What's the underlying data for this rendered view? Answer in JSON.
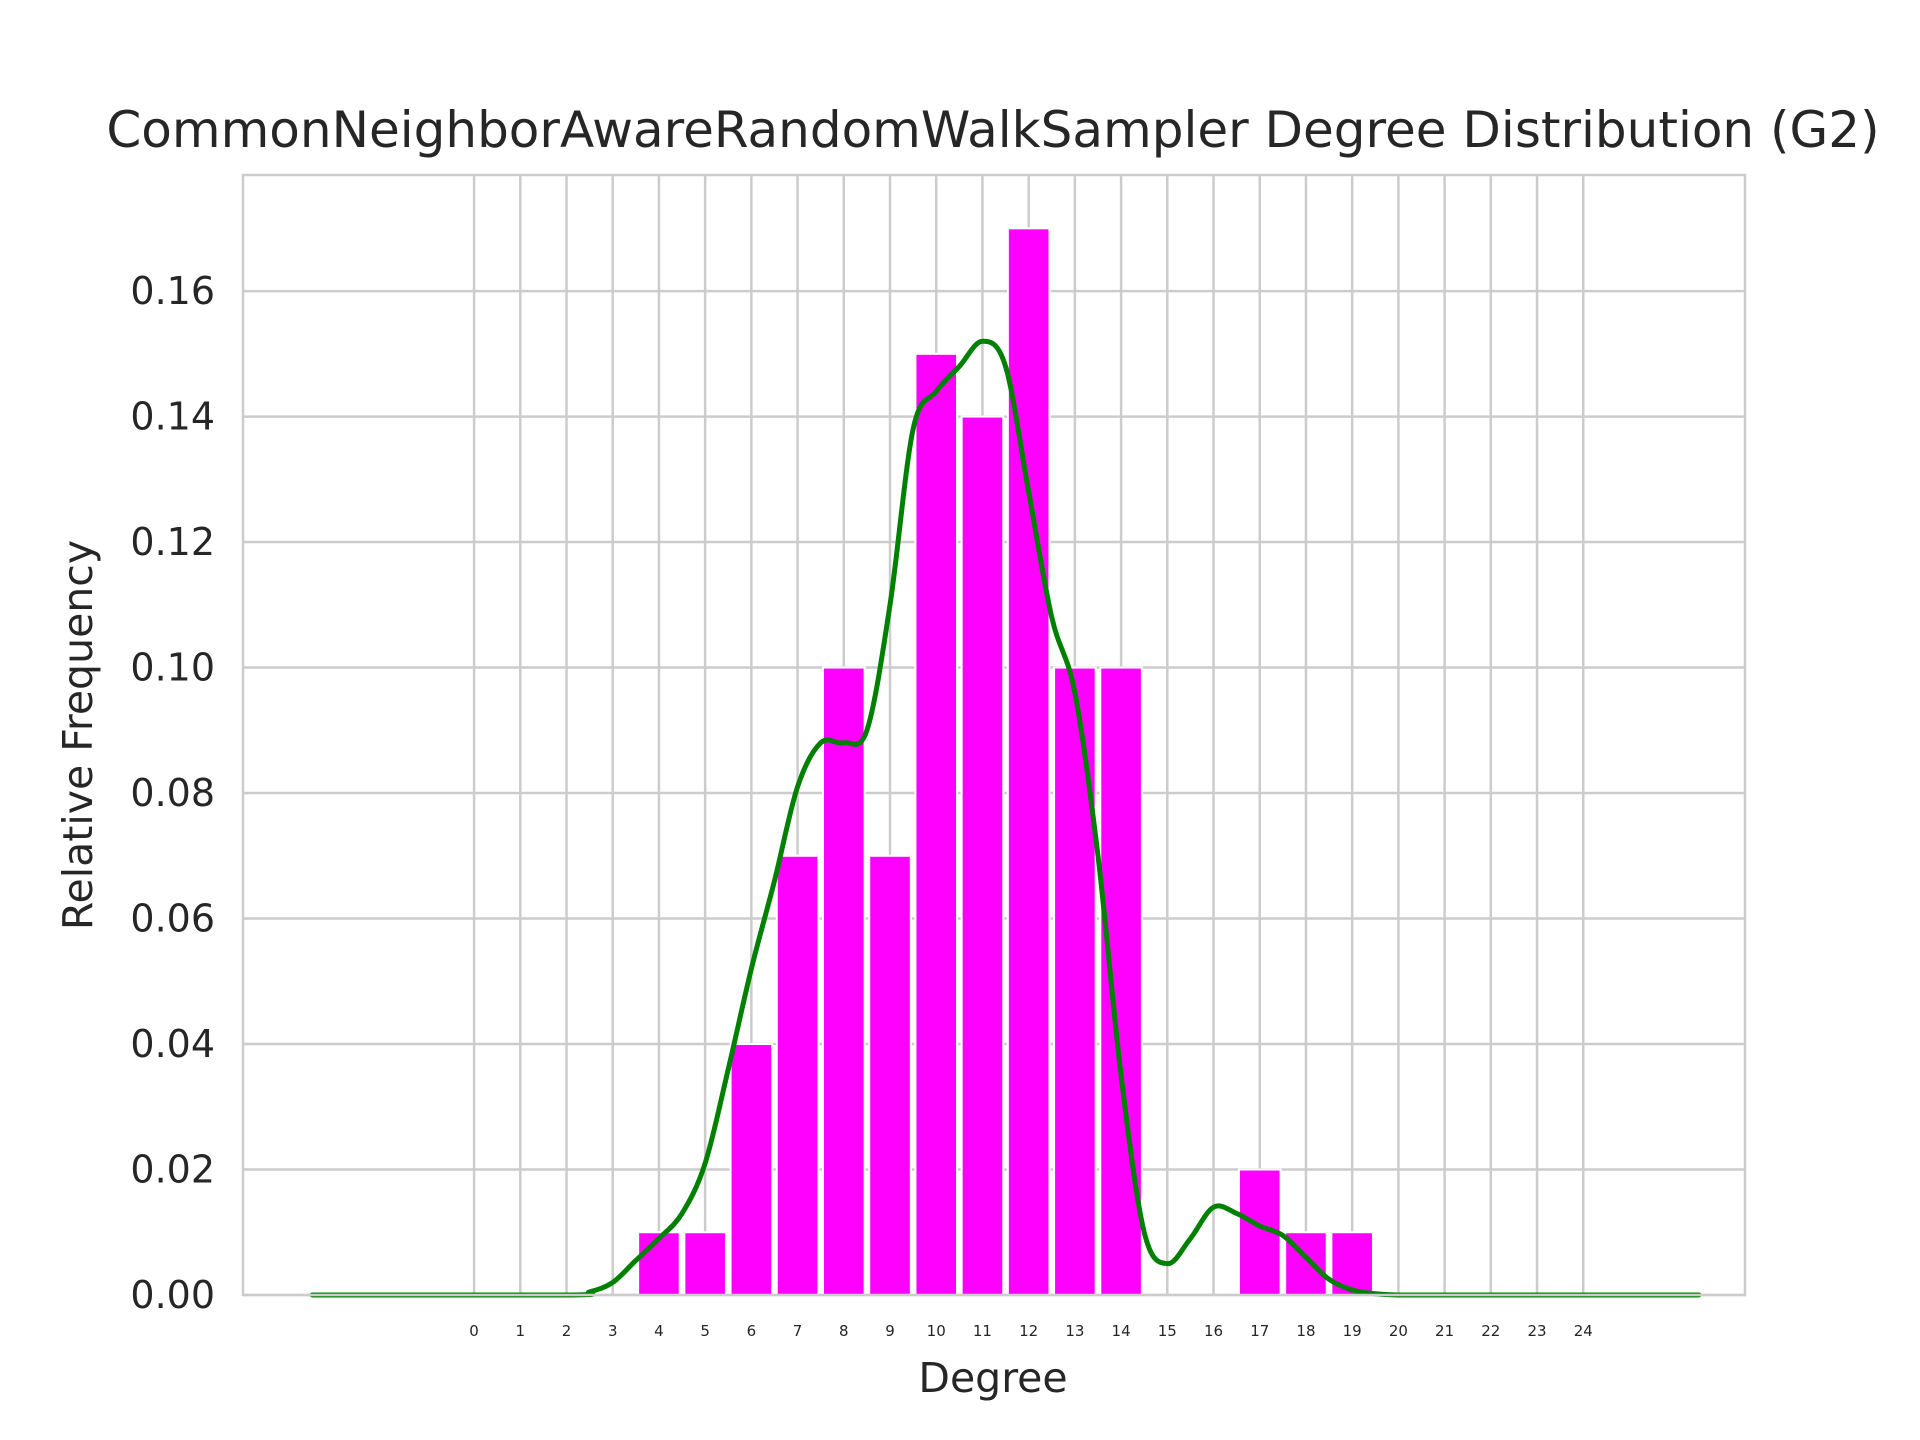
{
  "chart_data": {
    "type": "bar",
    "title": "CommonNeighborAwareRandomWalkSampler Degree Distribution (G2)",
    "xlabel": "Degree",
    "ylabel": "Relative Frequency",
    "x_ticks": [
      "0",
      "1",
      "2",
      "3",
      "4",
      "5",
      "6",
      "7",
      "8",
      "9",
      "10",
      "11",
      "12",
      "13",
      "14",
      "15",
      "16",
      "17",
      "18",
      "19",
      "20",
      "21",
      "22",
      "23",
      "24"
    ],
    "y_ticks": [
      "0.00",
      "0.02",
      "0.04",
      "0.06",
      "0.08",
      "0.10",
      "0.12",
      "0.14",
      "0.16"
    ],
    "xlim": [
      -5,
      27.5
    ],
    "ylim": [
      0,
      0.1785
    ],
    "bars": {
      "color": "#ff00ff",
      "width": 0.9,
      "x": [
        4,
        5,
        6,
        7,
        8,
        9,
        10,
        11,
        12,
        13,
        14,
        17,
        18,
        19
      ],
      "values": [
        0.01,
        0.01,
        0.04,
        0.07,
        0.1,
        0.07,
        0.15,
        0.14,
        0.17,
        0.1,
        0.1,
        0.02,
        0.01,
        0.01
      ]
    },
    "kde": {
      "color": "#008000",
      "x": [
        -3.5,
        2,
        2.5,
        3,
        3.5,
        4,
        4.5,
        5,
        5.5,
        6,
        6.5,
        7,
        7.5,
        8,
        8.5,
        9,
        9.5,
        10,
        10.5,
        11,
        11.5,
        12,
        12.5,
        13,
        13.5,
        14,
        14.5,
        15,
        15.5,
        16,
        16.5,
        17,
        17.5,
        18,
        18.5,
        19,
        19.5,
        20,
        20.5,
        21,
        26.5
      ],
      "y": [
        0.0,
        0.0,
        0.0005,
        0.002,
        0.0055,
        0.009,
        0.013,
        0.021,
        0.036,
        0.052,
        0.066,
        0.081,
        0.088,
        0.088,
        0.09,
        0.11,
        0.138,
        0.144,
        0.148,
        0.152,
        0.148,
        0.128,
        0.108,
        0.096,
        0.07,
        0.035,
        0.01,
        0.005,
        0.009,
        0.014,
        0.013,
        0.011,
        0.0095,
        0.006,
        0.0025,
        0.0008,
        0.0002,
        0.0,
        0.0,
        0.0,
        0.0
      ]
    },
    "grid": true,
    "legend": "none"
  }
}
